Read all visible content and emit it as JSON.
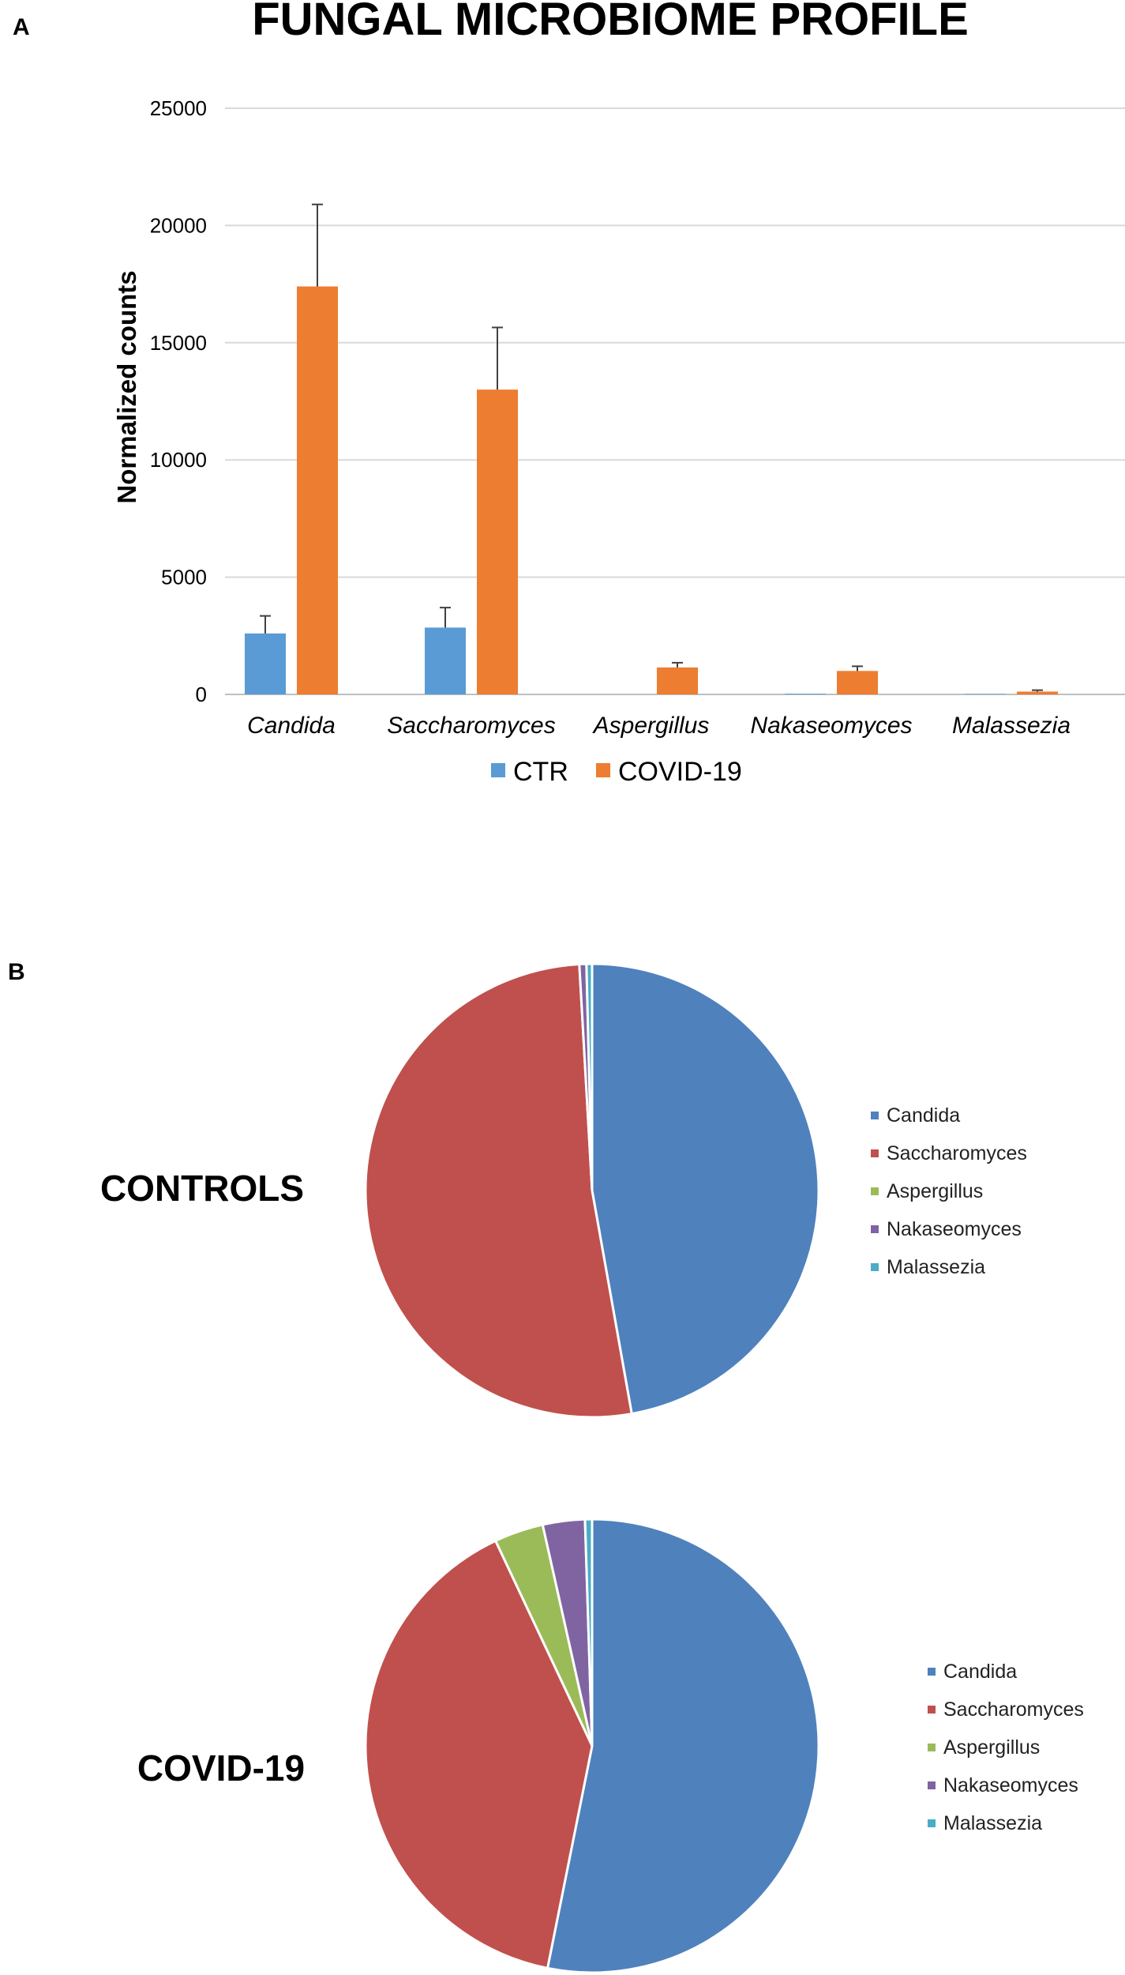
{
  "chart_data": [
    {
      "type": "bar",
      "panel": "A",
      "title": "FUNGAL MICROBIOME PROFILE",
      "ylabel": "Normalized counts",
      "xlabel": "",
      "ylim": [
        0,
        25000
      ],
      "yticks": [
        0,
        5000,
        10000,
        15000,
        20000,
        25000
      ],
      "grid": true,
      "legend_position": "bottom",
      "categories": [
        "Candida",
        "Saccharomyces",
        "Aspergillus",
        "Nakaseomyces",
        "Malassezia"
      ],
      "series": [
        {
          "name": "CTR",
          "color": "#5B9BD5",
          "values": [
            2600,
            2850,
            0,
            30,
            20
          ],
          "errors": [
            750,
            850,
            0,
            0,
            0
          ]
        },
        {
          "name": "COVID-19",
          "color": "#ED7D31",
          "values": [
            17400,
            13000,
            1150,
            1000,
            120
          ],
          "errors": [
            3500,
            2650,
            200,
            200,
            60
          ]
        }
      ]
    },
    {
      "type": "pie",
      "panel": "B",
      "title": "CONTROLS",
      "labels": [
        "Candida",
        "Saccharomyces",
        "Aspergillus",
        "Nakaseomyces",
        "Malassezia"
      ],
      "values": [
        47.2,
        51.9,
        0.0,
        0.5,
        0.4
      ],
      "colors": [
        "#4F81BD",
        "#C0504D",
        "#9BBB59",
        "#8064A2",
        "#4BACC6"
      ],
      "legend_position": "right"
    },
    {
      "type": "pie",
      "title": "COVID-19",
      "labels": [
        "Candida",
        "Saccharomyces",
        "Aspergillus",
        "Nakaseomyces",
        "Malassezia"
      ],
      "values": [
        53.1,
        39.8,
        3.5,
        3.0,
        0.5
      ],
      "colors": [
        "#4F81BD",
        "#C0504D",
        "#9BBB59",
        "#8064A2",
        "#4BACC6"
      ],
      "legend_position": "right"
    }
  ]
}
